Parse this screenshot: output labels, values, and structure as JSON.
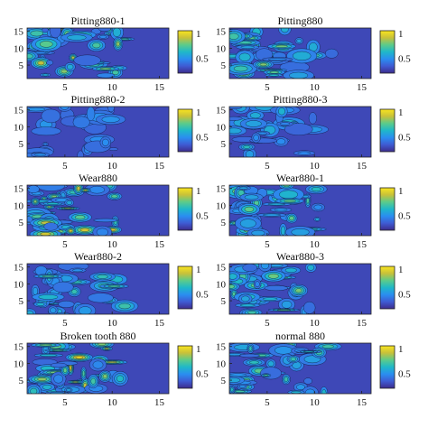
{
  "chart_data": [
    {
      "type": "heatmap",
      "title": "Pitting880-1",
      "x_ticks": [
        5,
        10,
        15
      ],
      "y_ticks": [
        5,
        10,
        15
      ],
      "xlim": [
        1,
        16
      ],
      "ylim": [
        1,
        16
      ],
      "colorbar_ticks": [
        0.5,
        1
      ],
      "colorbar_range": [
        0.2,
        1.05
      ],
      "colormap": [
        "#3d2c8c",
        "#3f5bd3",
        "#2a8ef0",
        "#1fb8c9",
        "#5ccb8a",
        "#c8c13a",
        "#f9e51f"
      ],
      "intensity": 0.55
    },
    {
      "type": "heatmap",
      "title": "Pitting880",
      "x_ticks": [
        5,
        10,
        15
      ],
      "y_ticks": [
        5,
        10,
        15
      ],
      "xlim": [
        1,
        16
      ],
      "ylim": [
        1,
        16
      ],
      "colorbar_ticks": [
        0.5,
        1
      ],
      "colorbar_range": [
        0.2,
        1.05
      ],
      "colormap": [
        "#3d2c8c",
        "#3f5bd3",
        "#2a8ef0",
        "#1fb8c9",
        "#5ccb8a",
        "#c8c13a",
        "#f9e51f"
      ],
      "intensity": 0.55
    },
    {
      "type": "heatmap",
      "title": "Pitting880-2",
      "x_ticks": [
        5,
        10,
        15
      ],
      "y_ticks": [
        5,
        10,
        15
      ],
      "xlim": [
        1,
        16
      ],
      "ylim": [
        1,
        16
      ],
      "colorbar_ticks": [
        0.5,
        1
      ],
      "colorbar_range": [
        0.2,
        1.05
      ],
      "colormap": [
        "#3d2c8c",
        "#3f5bd3",
        "#2a8ef0",
        "#1fb8c9",
        "#5ccb8a",
        "#c8c13a",
        "#f9e51f"
      ],
      "intensity": 0.15
    },
    {
      "type": "heatmap",
      "title": "Pitting880-3",
      "x_ticks": [
        5,
        10,
        15
      ],
      "y_ticks": [
        5,
        10,
        15
      ],
      "xlim": [
        1,
        16
      ],
      "ylim": [
        1,
        16
      ],
      "colorbar_ticks": [
        0.5,
        1
      ],
      "colorbar_range": [
        0.2,
        1.05
      ],
      "colormap": [
        "#3d2c8c",
        "#3f5bd3",
        "#2a8ef0",
        "#1fb8c9",
        "#5ccb8a",
        "#c8c13a",
        "#f9e51f"
      ],
      "intensity": 0.3
    },
    {
      "type": "heatmap",
      "title": "Wear880",
      "x_ticks": [
        5,
        10,
        15
      ],
      "y_ticks": [
        5,
        10,
        15
      ],
      "xlim": [
        1,
        16
      ],
      "ylim": [
        1,
        16
      ],
      "colorbar_ticks": [
        0.5,
        1
      ],
      "colorbar_range": [
        0.2,
        1.05
      ],
      "colormap": [
        "#3d2c8c",
        "#3f5bd3",
        "#2a8ef0",
        "#1fb8c9",
        "#5ccb8a",
        "#c8c13a",
        "#f9e51f"
      ],
      "intensity": 0.6
    },
    {
      "type": "heatmap",
      "title": "Wear880-1",
      "x_ticks": [
        5,
        10,
        15
      ],
      "y_ticks": [
        5,
        10,
        15
      ],
      "xlim": [
        1,
        16
      ],
      "ylim": [
        1,
        16
      ],
      "colorbar_ticks": [
        0.5,
        1
      ],
      "colorbar_range": [
        0.2,
        1.05
      ],
      "colormap": [
        "#3d2c8c",
        "#3f5bd3",
        "#2a8ef0",
        "#1fb8c9",
        "#5ccb8a",
        "#c8c13a",
        "#f9e51f"
      ],
      "intensity": 0.45
    },
    {
      "type": "heatmap",
      "title": "Wear880-2",
      "x_ticks": [
        5,
        10,
        15
      ],
      "y_ticks": [
        5,
        10,
        15
      ],
      "xlim": [
        1,
        16
      ],
      "ylim": [
        1,
        16
      ],
      "colorbar_ticks": [
        0.5,
        1
      ],
      "colorbar_range": [
        0.2,
        1.05
      ],
      "colormap": [
        "#3d2c8c",
        "#3f5bd3",
        "#2a8ef0",
        "#1fb8c9",
        "#5ccb8a",
        "#c8c13a",
        "#f9e51f"
      ],
      "intensity": 0.35
    },
    {
      "type": "heatmap",
      "title": "Wear880-3",
      "x_ticks": [
        5,
        10,
        15
      ],
      "y_ticks": [
        5,
        10,
        15
      ],
      "xlim": [
        1,
        16
      ],
      "ylim": [
        1,
        16
      ],
      "colorbar_ticks": [
        0.5,
        1
      ],
      "colorbar_range": [
        0.2,
        1.05
      ],
      "colormap": [
        "#3d2c8c",
        "#3f5bd3",
        "#2a8ef0",
        "#1fb8c9",
        "#5ccb8a",
        "#c8c13a",
        "#f9e51f"
      ],
      "intensity": 0.45
    },
    {
      "type": "heatmap",
      "title": "Broken tooth 880",
      "x_ticks": [
        5,
        10,
        15
      ],
      "y_ticks": [
        5,
        10,
        15
      ],
      "xlim": [
        1,
        16
      ],
      "ylim": [
        1,
        16
      ],
      "colorbar_ticks": [
        0.5,
        1
      ],
      "colorbar_range": [
        0.2,
        1.05
      ],
      "colormap": [
        "#3d2c8c",
        "#3f5bd3",
        "#2a8ef0",
        "#1fb8c9",
        "#5ccb8a",
        "#c8c13a",
        "#f9e51f"
      ],
      "intensity": 0.7
    },
    {
      "type": "heatmap",
      "title": "normal 880",
      "x_ticks": [
        5,
        10,
        15
      ],
      "y_ticks": [
        5,
        10,
        15
      ],
      "xlim": [
        1,
        16
      ],
      "ylim": [
        1,
        16
      ],
      "colorbar_ticks": [
        0.5,
        1
      ],
      "colorbar_range": [
        0.2,
        1.05
      ],
      "colormap": [
        "#3d2c8c",
        "#3f5bd3",
        "#2a8ef0",
        "#1fb8c9",
        "#5ccb8a",
        "#c8c13a",
        "#f9e51f"
      ],
      "intensity": 0.4
    }
  ]
}
